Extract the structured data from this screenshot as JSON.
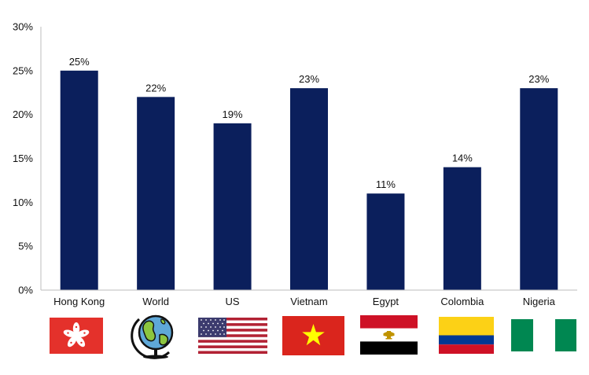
{
  "chart_data": {
    "type": "bar",
    "title": "",
    "xlabel": "",
    "ylabel": "",
    "categories": [
      "Hong Kong",
      "World",
      "US",
      "Vietnam",
      "Egypt",
      "Colombia",
      "Nigeria"
    ],
    "values": [
      25,
      22,
      19,
      23,
      11,
      14,
      23
    ],
    "data_labels": [
      "25%",
      "22%",
      "19%",
      "23%",
      "11%",
      "14%",
      "23%"
    ],
    "ylim": [
      0,
      30
    ],
    "yticks": [
      0,
      5,
      10,
      15,
      20,
      25,
      30
    ],
    "ytick_labels": [
      "0%",
      "5%",
      "10%",
      "15%",
      "20%",
      "25%",
      "30%"
    ],
    "grid": false,
    "legend": "none",
    "bar_color": "#0b1f5c",
    "category_icons": [
      "hong-kong-flag-icon",
      "globe-icon",
      "us-flag-icon",
      "vietnam-flag-icon",
      "egypt-flag-icon",
      "colombia-flag-icon",
      "nigeria-flag-icon"
    ]
  }
}
